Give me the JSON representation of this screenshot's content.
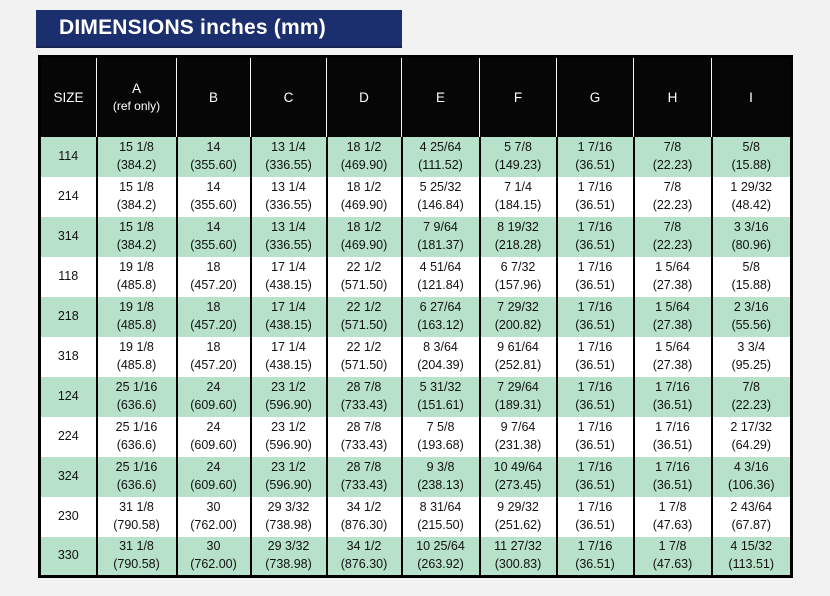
{
  "header": {
    "title": "DIMENSIONS inches (mm)"
  },
  "colors": {
    "accent_navy": "#1b2e6d",
    "row_green": "#b7e1c8",
    "header_black": "#060606",
    "page_background": "#f2f2f2"
  },
  "table": {
    "columns": [
      {
        "key": "size",
        "label": "SIZE"
      },
      {
        "key": "a",
        "label": "A",
        "sub": "(ref only)"
      },
      {
        "key": "b",
        "label": "B"
      },
      {
        "key": "c",
        "label": "C"
      },
      {
        "key": "d",
        "label": "D"
      },
      {
        "key": "e",
        "label": "E"
      },
      {
        "key": "f",
        "label": "F"
      },
      {
        "key": "g",
        "label": "G"
      },
      {
        "key": "h",
        "label": "H"
      },
      {
        "key": "i",
        "label": "I"
      }
    ],
    "rows": [
      {
        "size": "114",
        "cells": [
          [
            "15 1/8",
            "(384.2)"
          ],
          [
            "14",
            "(355.60)"
          ],
          [
            "13 1/4",
            "(336.55)"
          ],
          [
            "18 1/2",
            "(469.90)"
          ],
          [
            "4 25/64",
            "(111.52)"
          ],
          [
            "5 7/8",
            "(149.23)"
          ],
          [
            "1 7/16",
            "(36.51)"
          ],
          [
            "7/8",
            "(22.23)"
          ],
          [
            "5/8",
            "(15.88)"
          ]
        ]
      },
      {
        "size": "214",
        "cells": [
          [
            "15 1/8",
            "(384.2)"
          ],
          [
            "14",
            "(355.60)"
          ],
          [
            "13 1/4",
            "(336.55)"
          ],
          [
            "18 1/2",
            "(469.90)"
          ],
          [
            "5 25/32",
            "(146.84)"
          ],
          [
            "7 1/4",
            "(184.15)"
          ],
          [
            "1 7/16",
            "(36.51)"
          ],
          [
            "7/8",
            "(22.23)"
          ],
          [
            "1 29/32",
            "(48.42)"
          ]
        ]
      },
      {
        "size": "314",
        "cells": [
          [
            "15 1/8",
            "(384.2)"
          ],
          [
            "14",
            "(355.60)"
          ],
          [
            "13 1/4",
            "(336.55)"
          ],
          [
            "18 1/2",
            "(469.90)"
          ],
          [
            "7 9/64",
            "(181.37)"
          ],
          [
            "8 19/32",
            "(218.28)"
          ],
          [
            "1 7/16",
            "(36.51)"
          ],
          [
            "7/8",
            "(22.23)"
          ],
          [
            "3 3/16",
            "(80.96)"
          ]
        ]
      },
      {
        "size": "118",
        "cells": [
          [
            "19 1/8",
            "(485.8)"
          ],
          [
            "18",
            "(457.20)"
          ],
          [
            "17 1/4",
            "(438.15)"
          ],
          [
            "22 1/2",
            "(571.50)"
          ],
          [
            "4 51/64",
            "(121.84)"
          ],
          [
            "6 7/32",
            "(157.96)"
          ],
          [
            "1 7/16",
            "(36.51)"
          ],
          [
            "1 5/64",
            "(27.38)"
          ],
          [
            "5/8",
            "(15.88)"
          ]
        ]
      },
      {
        "size": "218",
        "cells": [
          [
            "19 1/8",
            "(485.8)"
          ],
          [
            "18",
            "(457.20)"
          ],
          [
            "17 1/4",
            "(438.15)"
          ],
          [
            "22 1/2",
            "(571.50)"
          ],
          [
            "6 27/64",
            "(163.12)"
          ],
          [
            "7 29/32",
            "(200.82)"
          ],
          [
            "1 7/16",
            "(36.51)"
          ],
          [
            "1 5/64",
            "(27.38)"
          ],
          [
            "2 3/16",
            "(55.56)"
          ]
        ]
      },
      {
        "size": "318",
        "cells": [
          [
            "19 1/8",
            "(485.8)"
          ],
          [
            "18",
            "(457.20)"
          ],
          [
            "17 1/4",
            "(438.15)"
          ],
          [
            "22 1/2",
            "(571.50)"
          ],
          [
            "8 3/64",
            "(204.39)"
          ],
          [
            "9 61/64",
            "(252.81)"
          ],
          [
            "1 7/16",
            "(36.51)"
          ],
          [
            "1 5/64",
            "(27.38)"
          ],
          [
            "3 3/4",
            "(95.25)"
          ]
        ]
      },
      {
        "size": "124",
        "cells": [
          [
            "25 1/16",
            "(636.6)"
          ],
          [
            "24",
            "(609.60)"
          ],
          [
            "23 1/2",
            "(596.90)"
          ],
          [
            "28 7/8",
            "(733.43)"
          ],
          [
            "5 31/32",
            "(151.61)"
          ],
          [
            "7 29/64",
            "(189.31)"
          ],
          [
            "1 7/16",
            "(36.51)"
          ],
          [
            "1 7/16",
            "(36.51)"
          ],
          [
            "7/8",
            "(22.23)"
          ]
        ]
      },
      {
        "size": "224",
        "cells": [
          [
            "25 1/16",
            "(636.6)"
          ],
          [
            "24",
            "(609.60)"
          ],
          [
            "23 1/2",
            "(596.90)"
          ],
          [
            "28 7/8",
            "(733.43)"
          ],
          [
            "7 5/8",
            "(193.68)"
          ],
          [
            "9 7/64",
            "(231.38)"
          ],
          [
            "1 7/16",
            "(36.51)"
          ],
          [
            "1 7/16",
            "(36.51)"
          ],
          [
            "2 17/32",
            "(64.29)"
          ]
        ]
      },
      {
        "size": "324",
        "cells": [
          [
            "25 1/16",
            "(636.6)"
          ],
          [
            "24",
            "(609.60)"
          ],
          [
            "23 1/2",
            "(596.90)"
          ],
          [
            "28 7/8",
            "(733.43)"
          ],
          [
            "9 3/8",
            "(238.13)"
          ],
          [
            "10 49/64",
            "(273.45)"
          ],
          [
            "1 7/16",
            "(36.51)"
          ],
          [
            "1 7/16",
            "(36.51)"
          ],
          [
            "4 3/16",
            "(106.36)"
          ]
        ]
      },
      {
        "size": "230",
        "cells": [
          [
            "31 1/8",
            "(790.58)"
          ],
          [
            "30",
            "(762.00)"
          ],
          [
            "29 3/32",
            "(738.98)"
          ],
          [
            "34 1/2",
            "(876.30)"
          ],
          [
            "8 31/64",
            "(215.50)"
          ],
          [
            "9 29/32",
            "(251.62)"
          ],
          [
            "1 7/16",
            "(36.51)"
          ],
          [
            "1 7/8",
            "(47.63)"
          ],
          [
            "2 43/64",
            "(67.87)"
          ]
        ]
      },
      {
        "size": "330",
        "cells": [
          [
            "31 1/8",
            "(790.58)"
          ],
          [
            "30",
            "(762.00)"
          ],
          [
            "29 3/32",
            "(738.98)"
          ],
          [
            "34 1/2",
            "(876.30)"
          ],
          [
            "10 25/64",
            "(263.92)"
          ],
          [
            "11 27/32",
            "(300.83)"
          ],
          [
            "1 7/16",
            "(36.51)"
          ],
          [
            "1 7/8",
            "(47.63)"
          ],
          [
            "4 15/32",
            "(113.51)"
          ]
        ]
      }
    ]
  }
}
